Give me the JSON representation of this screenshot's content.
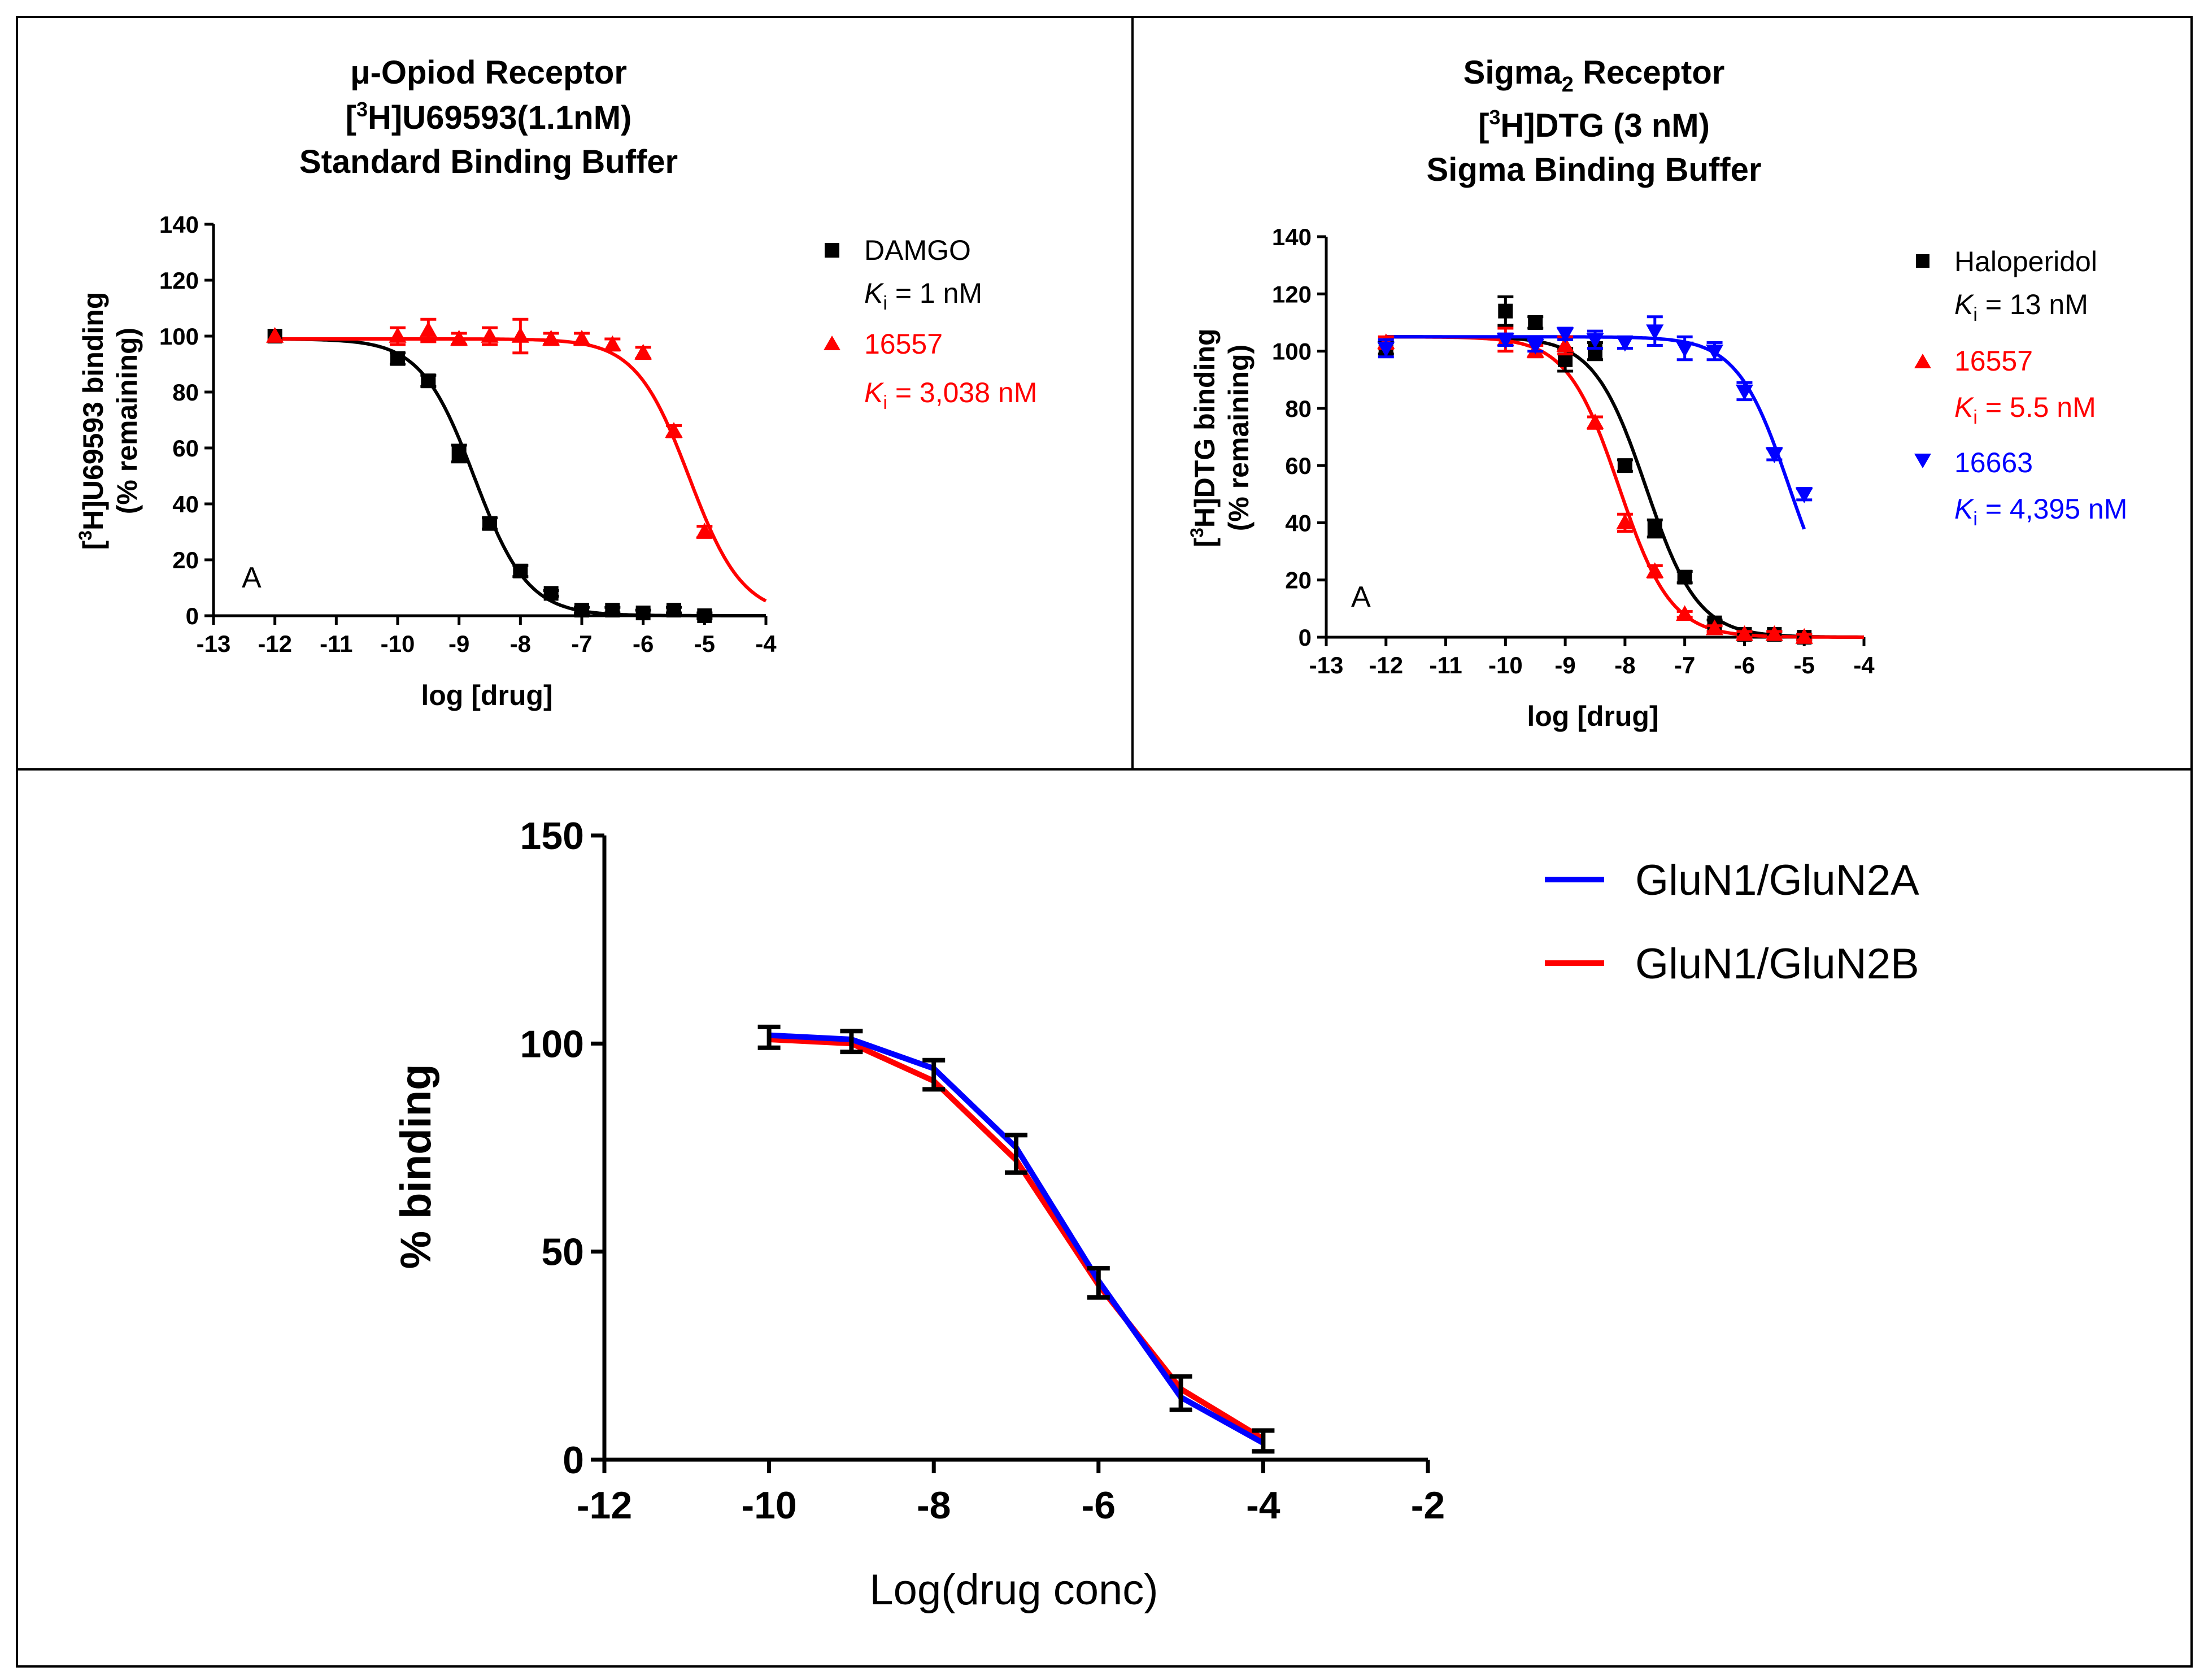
{
  "chart_data": [
    {
      "type": "scatter",
      "panel": "top-left",
      "title_lines": [
        "μ-Opiod Receptor",
        "[3H]U69593(1.1nM)",
        "Standard Binding Buffer"
      ],
      "title_line1": "μ-Opiod Receptor",
      "title_line2_pre": "[",
      "title_line2_sup": "3",
      "title_line2_post": "H]U69593(1.1nM)",
      "title_line3": "Standard Binding Buffer",
      "xlabel": "log [drug]",
      "ylabel_line1_pre": "[",
      "ylabel_line1_sup": "3",
      "ylabel_line1_post": "H]U69593 binding",
      "ylabel_line2": "(% remaining)",
      "xlim": [
        -13,
        -4
      ],
      "ylim": [
        0,
        140
      ],
      "xticks": [
        "-13",
        "-12",
        "-11",
        "-10",
        "-9",
        "-8",
        "-7",
        "-6",
        "-5",
        "-4"
      ],
      "yticks": [
        "0",
        "20",
        "40",
        "60",
        "80",
        "100",
        "120",
        "140"
      ],
      "panel_letter": "A",
      "series": [
        {
          "name": "DAMGO",
          "ki_label": "K",
          "ki_sub": "i",
          "ki_value": " = 1 nM",
          "color": "#000000",
          "marker": "square",
          "fit": {
            "top": 99,
            "bottom": 0,
            "logEC50": -8.75,
            "hill": 1.0
          },
          "x": [
            -12,
            -10,
            -9.5,
            -9,
            -8.5,
            -8,
            -7.5,
            -7,
            -6.5,
            -6,
            -5.5,
            -5
          ],
          "y": [
            100,
            92,
            84,
            58,
            33,
            16,
            8,
            2,
            2,
            1,
            2,
            0
          ],
          "err": [
            0,
            2,
            2,
            3,
            2,
            2,
            1,
            1,
            1,
            1,
            1,
            1
          ]
        },
        {
          "name": "16557",
          "ki_label": "K",
          "ki_sub": "i",
          "ki_value": " = 3,038 nM",
          "color": "#ff0000",
          "marker": "triangle-up",
          "fit": {
            "top": 99,
            "bottom": 0,
            "logEC50": -5.25,
            "hill": 1.0
          },
          "x": [
            -12,
            -10,
            -9.5,
            -9,
            -8.5,
            -8,
            -7.5,
            -7,
            -6.5,
            -6,
            -5.5,
            -5
          ],
          "y": [
            100,
            100,
            102,
            99,
            100,
            100,
            99,
            99,
            97,
            94,
            66,
            30
          ],
          "err": [
            0,
            3,
            4,
            2,
            3,
            6,
            2,
            2,
            2,
            2,
            2,
            2
          ]
        }
      ]
    },
    {
      "type": "scatter",
      "panel": "top-right",
      "title_line1_pre": "Sigma",
      "title_line1_sub": "2",
      "title_line1_post": " Receptor",
      "title_line2_pre": "[",
      "title_line2_sup": "3",
      "title_line2_post": "H]DTG (3 nM)",
      "title_line3": "Sigma Binding Buffer",
      "xlabel": "log [drug]",
      "ylabel_line1_pre": "[",
      "ylabel_line1_sup": "3",
      "ylabel_line1_post": "H]DTG binding",
      "ylabel_line2": "(% remaining)",
      "xlim": [
        -13,
        -4
      ],
      "ylim": [
        0,
        140
      ],
      "xticks": [
        "-13",
        "-12",
        "-11",
        "-10",
        "-9",
        "-8",
        "-7",
        "-6",
        "-5",
        "-4"
      ],
      "yticks": [
        "0",
        "20",
        "40",
        "60",
        "80",
        "100",
        "120",
        "140"
      ],
      "panel_letter": "A",
      "series": [
        {
          "name": "Haloperidol",
          "ki_label": "K",
          "ki_sub": "i",
          "ki_value": " = 13 nM",
          "color": "#000000",
          "marker": "square",
          "fit": {
            "top": 105,
            "bottom": 0,
            "logEC50": -7.65,
            "hill": 1.0
          },
          "x": [
            -12,
            -10,
            -9.5,
            -9,
            -8.5,
            -8,
            -7.5,
            -7,
            -6.5,
            -6,
            -5.5,
            -5
          ],
          "y": [
            101,
            114,
            110,
            97,
            100,
            60,
            38,
            21,
            5,
            1,
            1,
            0
          ],
          "err": [
            2,
            5,
            2,
            4,
            3,
            2,
            3,
            2,
            1,
            1,
            1,
            1
          ]
        },
        {
          "name": "16557",
          "ki_label": "K",
          "ki_sub": "i",
          "ki_value": " = 5.5 nM",
          "color": "#ff0000",
          "marker": "triangle-up",
          "fit": {
            "top": 105,
            "bottom": 0,
            "logEC50": -8.1,
            "hill": 1.0
          },
          "x": [
            -12,
            -10,
            -9.5,
            -9,
            -8.5,
            -8,
            -7.5,
            -7,
            -6.5,
            -6,
            -5.5,
            -5
          ],
          "y": [
            103,
            104,
            100,
            102,
            75,
            40,
            23,
            8,
            3,
            1,
            1,
            0
          ],
          "err": [
            2,
            4,
            2,
            3,
            2,
            3,
            2,
            1,
            1,
            1,
            1,
            1
          ]
        },
        {
          "name": "16663",
          "ki_label": "K",
          "ki_sub": "i",
          "ki_value": " = 4,395 nM",
          "color": "#0000ff",
          "marker": "triangle-down",
          "fit": {
            "top": 105,
            "bottom": 0,
            "logEC50": -5.25,
            "hill": 1.0
          },
          "x": [
            -12,
            -10,
            -9.5,
            -9,
            -8.5,
            -8,
            -7.5,
            -7,
            -6.5,
            -6,
            -5.5,
            -5
          ],
          "y": [
            101,
            104,
            102,
            106,
            104,
            103,
            107,
            101,
            100,
            86,
            64,
            50
          ],
          "err": [
            3,
            2,
            2,
            2,
            3,
            2,
            5,
            4,
            3,
            3,
            2,
            2
          ]
        }
      ]
    },
    {
      "type": "line",
      "panel": "bottom",
      "xlabel": "Log(drug conc)",
      "ylabel": "% binding",
      "xlim": [
        -12,
        -2
      ],
      "ylim": [
        0,
        150
      ],
      "xticks": [
        "-12",
        "-10",
        "-8",
        "-6",
        "-4",
        "-2"
      ],
      "yticks": [
        "0",
        "50",
        "100",
        "150"
      ],
      "series": [
        {
          "name": "GluN1/GluN2A",
          "color": "#0000ff",
          "x": [
            -10,
            -9,
            -8,
            -7,
            -6,
            -5,
            -4
          ],
          "y": [
            102,
            101,
            94,
            75,
            43,
            15,
            4
          ],
          "err": [
            2,
            2,
            2,
            3,
            3,
            3,
            2
          ]
        },
        {
          "name": "GluN1/GluN2B",
          "color": "#ff0000",
          "x": [
            -10,
            -9,
            -8,
            -7,
            -6,
            -5,
            -4
          ],
          "y": [
            101,
            100,
            91,
            72,
            42,
            17,
            5
          ],
          "err": [
            2,
            2,
            2,
            3,
            3,
            3,
            2
          ]
        }
      ]
    }
  ]
}
